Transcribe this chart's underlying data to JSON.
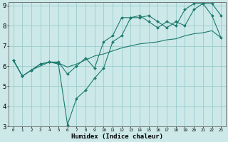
{
  "xlabel": "Humidex (Indice chaleur)",
  "background_color": "#cce8e8",
  "grid_color": "#99cccc",
  "line_color": "#1a7a6e",
  "x_min": -0.5,
  "x_max": 23.5,
  "y_min": 3,
  "y_max": 9,
  "line1_x": [
    0,
    1,
    2,
    3,
    4,
    5,
    6,
    7,
    8,
    9,
    10,
    11,
    12,
    13,
    14,
    15,
    16,
    17,
    18,
    19,
    20,
    21,
    22,
    23
  ],
  "line1_y": [
    6.3,
    5.5,
    5.8,
    6.1,
    6.2,
    6.2,
    5.6,
    6.0,
    6.4,
    5.9,
    7.2,
    7.5,
    8.4,
    8.4,
    8.5,
    8.2,
    7.9,
    8.2,
    8.0,
    8.8,
    9.1,
    9.1,
    8.5,
    7.4
  ],
  "line2_x": [
    0,
    1,
    2,
    3,
    4,
    5,
    6,
    7,
    8,
    9,
    10,
    11,
    12,
    13,
    14,
    15,
    16,
    17,
    18,
    19,
    20,
    21,
    22,
    23
  ],
  "line2_y": [
    6.3,
    5.5,
    5.8,
    6.1,
    6.2,
    6.1,
    3.1,
    4.4,
    4.8,
    5.4,
    5.9,
    7.2,
    7.5,
    8.4,
    8.4,
    8.5,
    8.2,
    7.9,
    8.2,
    8.0,
    8.8,
    9.1,
    9.1,
    8.5
  ],
  "line3_x": [
    0,
    1,
    2,
    3,
    4,
    5,
    6,
    7,
    8,
    9,
    10,
    11,
    12,
    13,
    14,
    15,
    16,
    17,
    18,
    19,
    20,
    21,
    22,
    23
  ],
  "line3_y": [
    6.3,
    5.5,
    5.8,
    6.0,
    6.2,
    6.15,
    5.95,
    6.1,
    6.3,
    6.5,
    6.6,
    6.75,
    6.9,
    7.0,
    7.1,
    7.15,
    7.2,
    7.3,
    7.35,
    7.5,
    7.6,
    7.65,
    7.75,
    7.4
  ],
  "yticks": [
    3,
    4,
    5,
    6,
    7,
    8,
    9
  ],
  "ytick_labels": [
    "3",
    "4",
    "5",
    "6",
    "7",
    "8",
    "9"
  ],
  "xtick_positions": [
    0,
    1,
    2,
    3,
    4,
    5,
    6,
    7,
    8,
    9,
    10,
    11,
    12,
    13,
    14,
    15,
    16,
    17,
    18,
    19,
    20,
    21,
    22,
    23
  ],
  "xtick_labels": [
    "0",
    "1",
    "2",
    "3",
    "4",
    "5",
    "6",
    "7",
    "8",
    "9",
    "10",
    "11",
    "12",
    "13",
    "14",
    "15",
    "16",
    "17",
    "18",
    "19",
    "20",
    "21",
    "22",
    "23"
  ]
}
